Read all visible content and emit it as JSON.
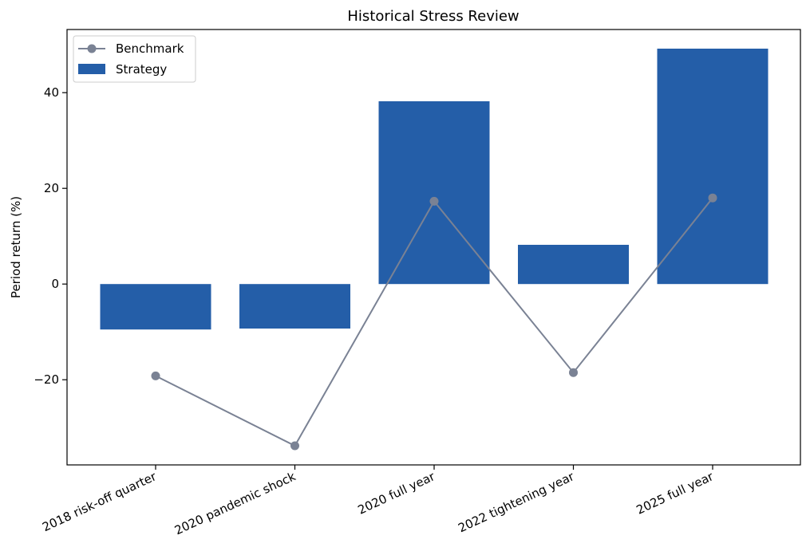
{
  "chart_data": {
    "type": "bar",
    "title": "Historical Stress Review",
    "xlabel": "",
    "ylabel": "Period return (%)",
    "categories": [
      "2018 risk-off quarter",
      "2020 pandemic shock",
      "2020 full year",
      "2022 tightening year",
      "2025 full year"
    ],
    "series": [
      {
        "name": "Strategy",
        "kind": "bar",
        "color": "#245ea8",
        "values": [
          -9.5,
          -9.3,
          38.2,
          8.2,
          49.2
        ]
      },
      {
        "name": "Benchmark",
        "kind": "line",
        "color": "#7a8294",
        "values": [
          -19.2,
          -33.8,
          17.3,
          -18.5,
          18.0
        ]
      }
    ],
    "ylim": [
      -37.8,
      53.2
    ],
    "yticks": [
      -20,
      0,
      20,
      40
    ],
    "ytick_labels": [
      "−20",
      "0",
      "20",
      "40"
    ],
    "grid": false,
    "legend": "top-left"
  }
}
